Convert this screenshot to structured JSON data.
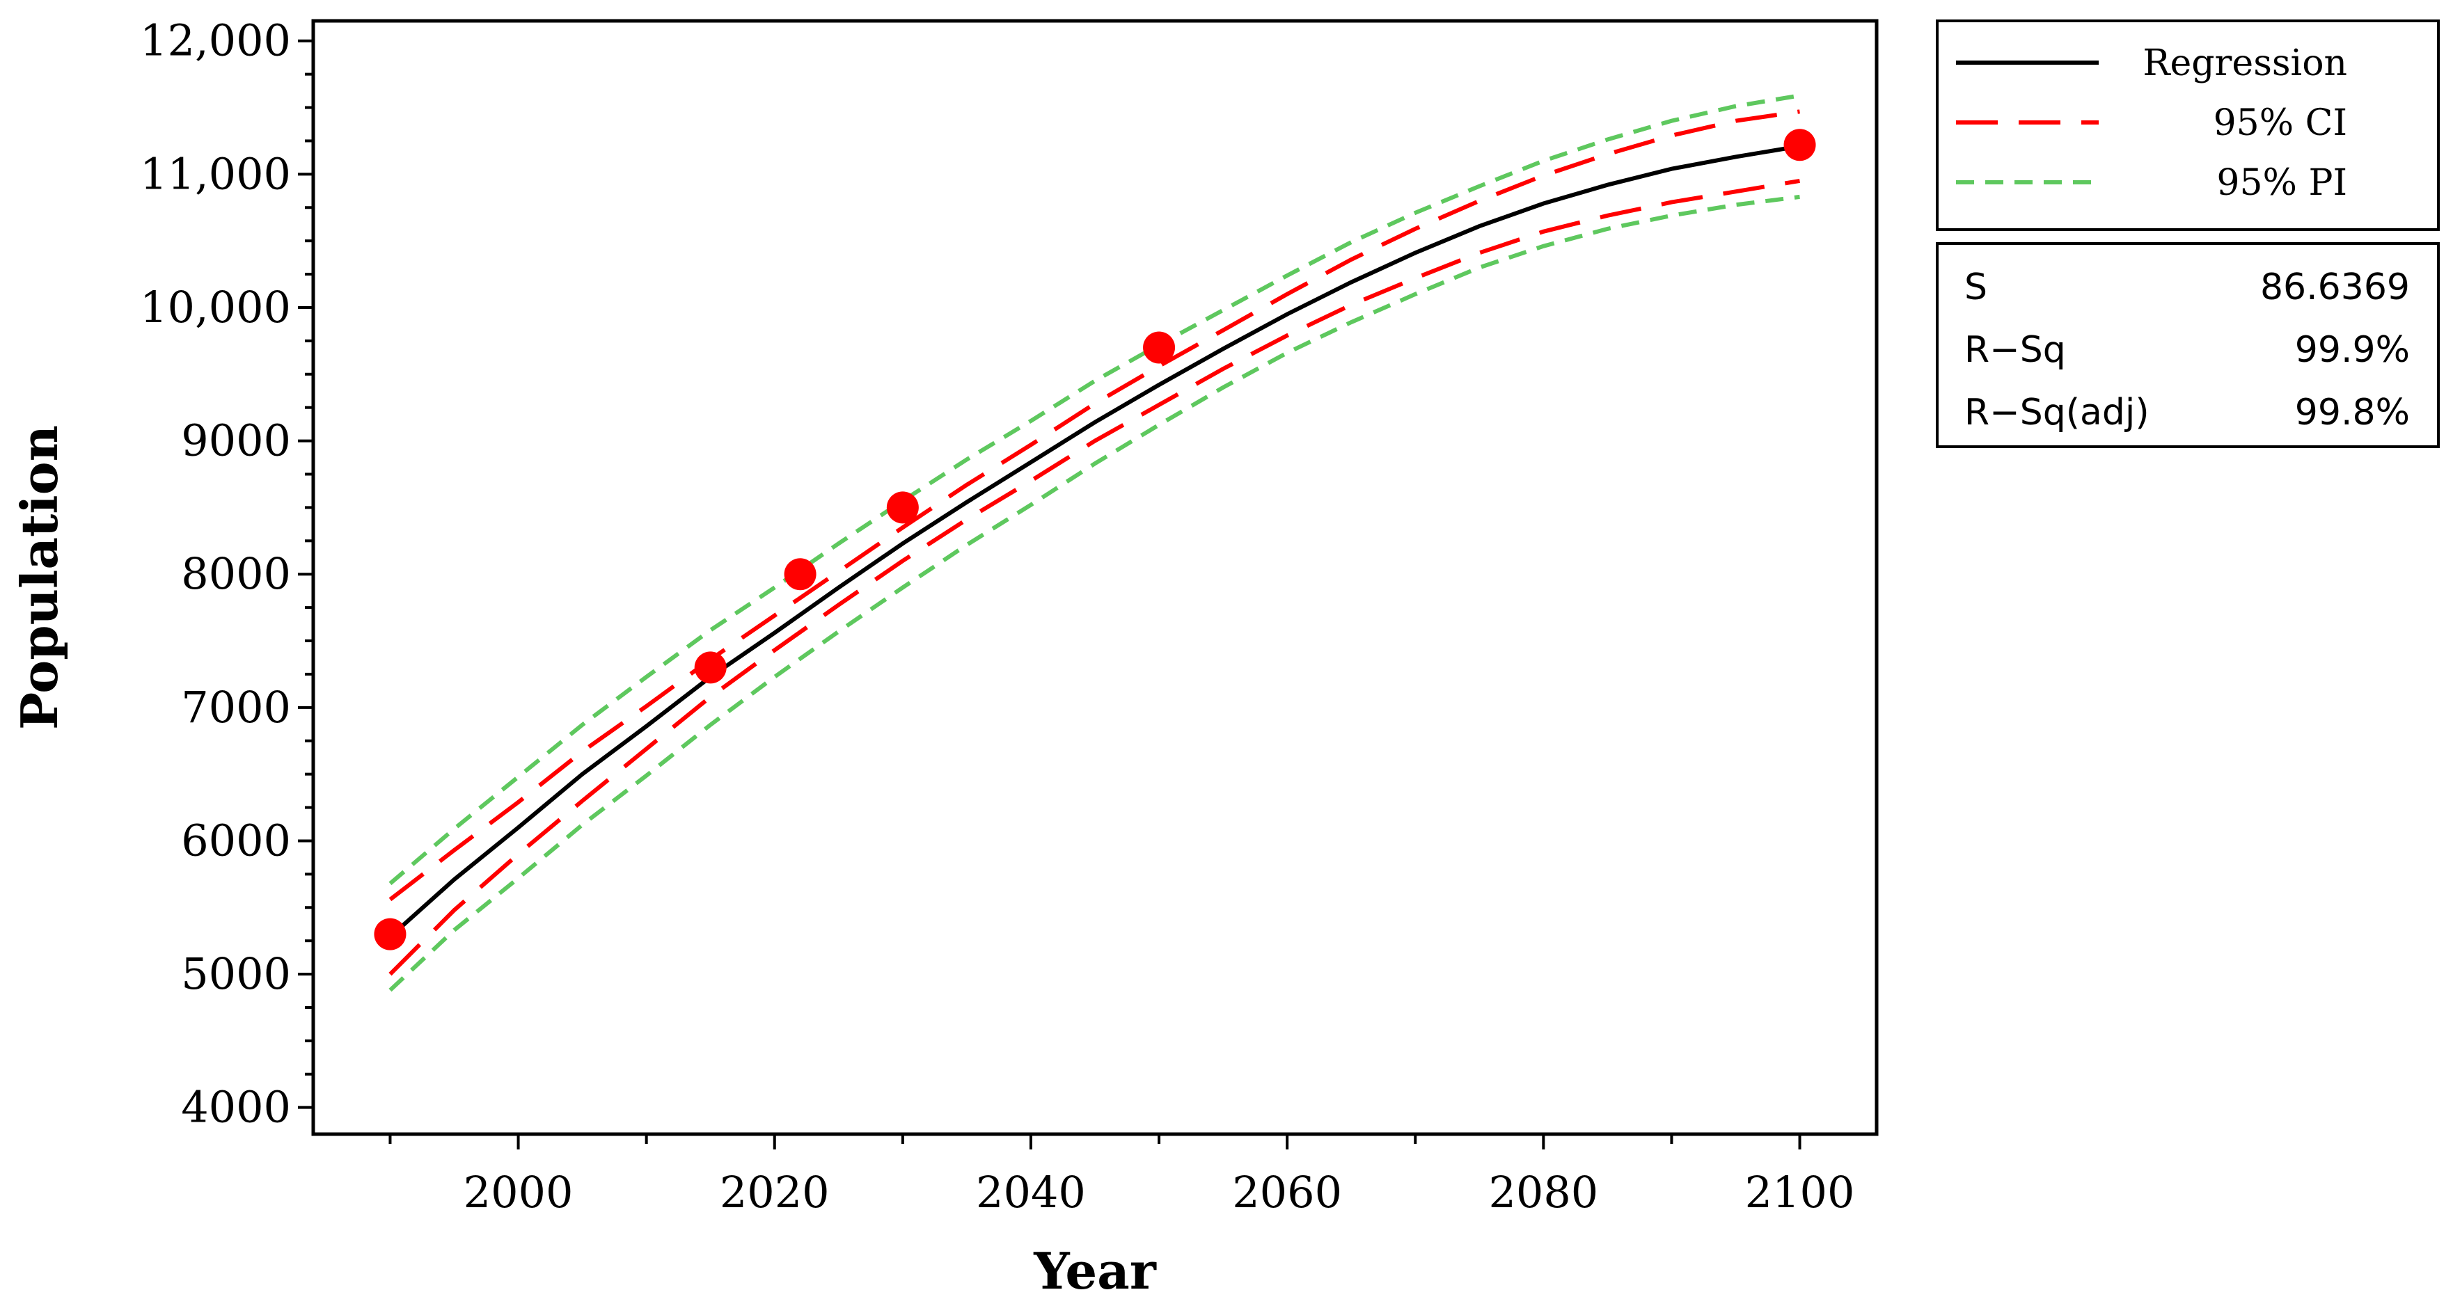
{
  "chart_data": {
    "type": "line",
    "xlabel": "Year",
    "ylabel": "Population",
    "xlim": [
      1984,
      2106
    ],
    "ylim": [
      3800,
      12150
    ],
    "x_ticks_major": [
      2000,
      2020,
      2040,
      2060,
      2080,
      2100
    ],
    "x_tick_labels": [
      "2000",
      "2020",
      "2040",
      "2060",
      "2080",
      "2100"
    ],
    "x_ticks_minor": [
      1990,
      2010,
      2030,
      2050,
      2070,
      2090
    ],
    "y_ticks_major": [
      4000,
      5000,
      6000,
      7000,
      8000,
      9000,
      10000,
      11000,
      12000
    ],
    "y_tick_labels": [
      "4000",
      "5000",
      "6000",
      "7000",
      "8000",
      "9000",
      "10,000",
      "11,000",
      "12,000"
    ],
    "grid": false,
    "legend_position": "outside-right-top",
    "series": [
      {
        "name": "Regression",
        "style": "solid",
        "color": "#000000",
        "x": [
          1990,
          1995,
          2000,
          2005,
          2010,
          2015,
          2020,
          2025,
          2030,
          2035,
          2040,
          2045,
          2050,
          2055,
          2060,
          2065,
          2070,
          2075,
          2080,
          2085,
          2090,
          2095,
          2100
        ],
        "y": [
          5280,
          5710,
          6100,
          6500,
          6860,
          7230,
          7560,
          7900,
          8230,
          8540,
          8840,
          9140,
          9420,
          9690,
          9950,
          10190,
          10410,
          10610,
          10780,
          10920,
          11040,
          11130,
          11210
        ]
      },
      {
        "name": "95% CI",
        "style": "long-dash",
        "color": "#ff0000",
        "upper": [
          5560,
          5930,
          6290,
          6670,
          7010,
          7360,
          7690,
          8020,
          8350,
          8670,
          8970,
          9280,
          9560,
          9830,
          10100,
          10360,
          10590,
          10800,
          10990,
          11150,
          11290,
          11400,
          11470
        ],
        "lower": [
          5000,
          5480,
          5900,
          6300,
          6690,
          7080,
          7430,
          7770,
          8100,
          8410,
          8700,
          9000,
          9270,
          9540,
          9790,
          10020,
          10220,
          10410,
          10570,
          10690,
          10790,
          10870,
          10950
        ]
      },
      {
        "name": "95% PI",
        "style": "short-dash",
        "color": "#5ec85e",
        "upper": [
          5680,
          6090,
          6480,
          6870,
          7230,
          7580,
          7900,
          8230,
          8550,
          8860,
          9150,
          9450,
          9720,
          9980,
          10240,
          10490,
          10710,
          10910,
          11100,
          11260,
          11400,
          11510,
          11590
        ],
        "lower": [
          4880,
          5330,
          5720,
          6120,
          6490,
          6870,
          7230,
          7570,
          7900,
          8220,
          8520,
          8830,
          9120,
          9400,
          9660,
          9890,
          10100,
          10300,
          10460,
          10590,
          10690,
          10770,
          10830
        ]
      }
    ],
    "observed_points": {
      "color": "#ff0000",
      "x": [
        1990,
        2015,
        2022,
        2030,
        2050,
        2100
      ],
      "y": [
        5300,
        7300,
        8000,
        8500,
        9700,
        11220
      ]
    }
  },
  "stats_box": [
    {
      "label": "S",
      "value": "86.6369"
    },
    {
      "label": "R−Sq",
      "value": "99.9%"
    },
    {
      "label": "R−Sq(adj)",
      "value": "99.8%"
    }
  ],
  "colors": {
    "regression": "#000000",
    "ci": "#ff0000",
    "pi": "#5ec85e",
    "points": "#ff0000"
  }
}
